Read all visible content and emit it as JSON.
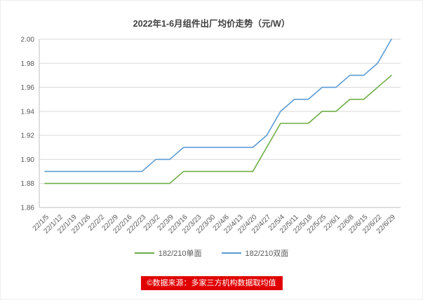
{
  "page": {
    "footer_text": "©数据来源：多家三方机构数据取均值",
    "footer_bg": "#e00000",
    "footer_color": "#ffffff"
  },
  "chart_data": {
    "type": "line",
    "title": "2022年1-6月组件出厂均价走势（元/W）",
    "xlabel": "",
    "ylabel": "",
    "ylim": [
      1.86,
      2.0
    ],
    "ytick_step": 0.02,
    "grid": true,
    "legend_position": "bottom",
    "grid_color": "#d9d9d9",
    "axis_color": "#bfbfbf",
    "tick_label_color": "#595959",
    "categories": [
      "22/1/5",
      "22/1/12",
      "22/1/19",
      "22/1/26",
      "22/2/2",
      "22/2/9",
      "22/2/16",
      "22/2/23",
      "22/3/2",
      "22/3/9",
      "22/3/16",
      "22/3/23",
      "22/3/30",
      "22/4/6",
      "22/4/13",
      "22/4/20",
      "22/4/27",
      "22/5/4",
      "22/5/11",
      "22/5/18",
      "22/5/25",
      "22/6/1",
      "22/6/8",
      "22/6/15",
      "22/6/22",
      "22/6/29"
    ],
    "series": [
      {
        "name": "182/210单面",
        "color": "#70ad47",
        "values": [
          1.88,
          1.88,
          1.88,
          1.88,
          1.88,
          1.88,
          1.88,
          1.88,
          1.88,
          1.88,
          1.89,
          1.89,
          1.89,
          1.89,
          1.89,
          1.89,
          1.91,
          1.93,
          1.93,
          1.93,
          1.94,
          1.94,
          1.95,
          1.95,
          1.96,
          1.97
        ]
      },
      {
        "name": "182/210双面",
        "color": "#5b9bd5",
        "values": [
          1.89,
          1.89,
          1.89,
          1.89,
          1.89,
          1.89,
          1.89,
          1.89,
          1.9,
          1.9,
          1.91,
          1.91,
          1.91,
          1.91,
          1.91,
          1.91,
          1.92,
          1.94,
          1.95,
          1.95,
          1.96,
          1.96,
          1.97,
          1.97,
          1.98,
          2.0
        ]
      }
    ]
  }
}
